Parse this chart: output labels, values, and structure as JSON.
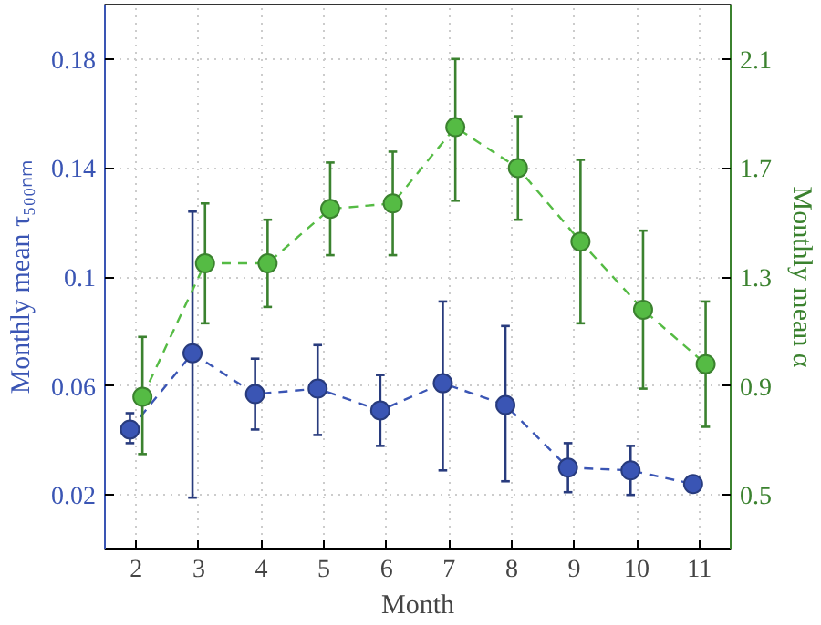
{
  "chart_data": {
    "type": "line",
    "xlabel": "Month",
    "ylabel": "Monthly mean τ₅₀₀ₙₘ",
    "y2label": "Monthly mean α",
    "xlim": [
      1.5,
      11.5
    ],
    "xticks": [
      2,
      3,
      4,
      5,
      6,
      7,
      8,
      9,
      10,
      11
    ],
    "ylim": [
      0,
      0.2
    ],
    "yticks": [
      0.02,
      0.06,
      0.1,
      0.14,
      0.18
    ],
    "y2lim": [
      0.3,
      2.3
    ],
    "y2ticks": [
      0.5,
      0.9,
      1.3,
      1.7,
      2.1
    ],
    "grid": true,
    "marker": "circle",
    "line_style": "dashed",
    "series": [
      {
        "color": "#3a55b4",
        "x": [
          1.9,
          2.9,
          3.9,
          4.9,
          5.9,
          6.9,
          7.9,
          8.9,
          9.9,
          10.9
        ],
        "values": [
          0.044,
          0.072,
          0.057,
          0.059,
          0.051,
          0.061,
          0.053,
          0.03,
          0.029,
          0.024
        ],
        "errors": [
          [
            0.039,
            0.05
          ],
          [
            0.019,
            0.124
          ],
          [
            0.044,
            0.07
          ],
          [
            0.042,
            0.075
          ],
          [
            0.038,
            0.064
          ],
          [
            0.029,
            0.091
          ],
          [
            0.025,
            0.082
          ],
          [
            0.021,
            0.039
          ],
          [
            0.02,
            0.038
          ],
          null
        ]
      },
      {
        "color": "#55bb44",
        "axis": "y2",
        "x": [
          2.1,
          3.1,
          4.1,
          5.1,
          6.1,
          7.1,
          8.1,
          9.1,
          10.1,
          11.1
        ],
        "values": [
          0.86,
          1.35,
          1.35,
          1.55,
          1.57,
          1.85,
          1.7,
          1.43,
          1.18,
          0.98
        ],
        "errors": [
          [
            0.65,
            1.08
          ],
          [
            1.13,
            1.57
          ],
          [
            1.19,
            1.51
          ],
          [
            1.38,
            1.72
          ],
          [
            1.38,
            1.76
          ],
          [
            1.58,
            2.1
          ],
          [
            1.51,
            1.89
          ],
          [
            1.13,
            1.73
          ],
          [
            0.89,
            1.47
          ],
          [
            0.75,
            1.21
          ]
        ]
      }
    ]
  }
}
